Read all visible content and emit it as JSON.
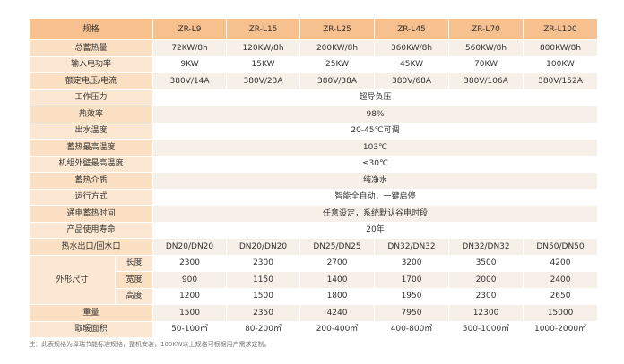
{
  "table": {
    "header": {
      "spec_label": "规格",
      "models": [
        "ZR-L9",
        "ZR-L15",
        "ZR-L25",
        "ZR-L45",
        "ZR-L70",
        "ZR-L100"
      ]
    },
    "rows": [
      {
        "label": "总蓄热量",
        "values": [
          "72KW/8h",
          "120KW/8h",
          "200KW/8h",
          "360KW/8h",
          "560KW/8h",
          "800KW/8h"
        ]
      },
      {
        "label": "输入电功率",
        "values": [
          "9KW",
          "15KW",
          "25KW",
          "45KW",
          "70KW",
          "100KW"
        ]
      },
      {
        "label": "额定电压/电流",
        "values": [
          "380V/14A",
          "380V/23A",
          "380V/38A",
          "380V/68A",
          "380V/106A",
          "380V/152A"
        ]
      },
      {
        "label": "工作压力",
        "value": "超导负压"
      },
      {
        "label": "热效率",
        "value": "98%"
      },
      {
        "label": "出水温度",
        "value": "20-45℃可调"
      },
      {
        "label": "蓄热最高温度",
        "value": "103℃"
      },
      {
        "label": "机组外壁最高温度",
        "value": "≤30℃"
      },
      {
        "label": "蓄热介质",
        "value": "纯净水"
      },
      {
        "label": "运行方式",
        "value": "智能全自动，一键启停"
      },
      {
        "label": "通电蓄热时间",
        "value": "任意设定，系统默认谷电时段"
      },
      {
        "label": "产品使用寿命",
        "value": "20年"
      },
      {
        "label": "热水出口/回水口",
        "values": [
          "DN20/DN20",
          "DN20/DN20",
          "DN25/DN25",
          "DN32/DN32",
          "DN32/DN32",
          "DN50/DN50"
        ]
      }
    ],
    "dimensions": {
      "label": "外形尺寸",
      "rows": [
        {
          "label": "长度",
          "values": [
            "2300",
            "2300",
            "2700",
            "3200",
            "3500",
            "4200"
          ]
        },
        {
          "label": "宽度",
          "values": [
            "900",
            "1150",
            "1400",
            "1700",
            "2000",
            "2400"
          ]
        },
        {
          "label": "高度",
          "values": [
            "1200",
            "1500",
            "1800",
            "1950",
            "2300",
            "2650"
          ]
        }
      ]
    },
    "tail_rows": [
      {
        "label": "重量",
        "values": [
          "1500",
          "2350",
          "4240",
          "7950",
          "12300",
          "15000"
        ]
      },
      {
        "label": "取暖面积",
        "values": [
          "50-100㎡",
          "80-200㎡",
          "200-400㎡",
          "400-800㎡",
          "500-1000㎡",
          "1000-2000㎡"
        ]
      }
    ]
  },
  "note": "注：此表规格为泽瑞节能标准规格，整机安装，100KW以上规格可根据用户需求定制。",
  "colors": {
    "header_bg": "#f7c18f",
    "label_bg": "#fbe0c3",
    "row_alt_bg": "#f7f0e8"
  }
}
